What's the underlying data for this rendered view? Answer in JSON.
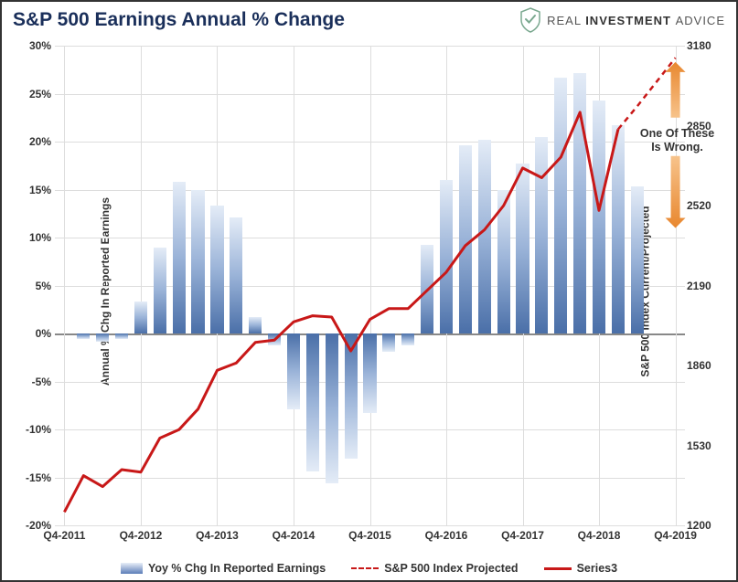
{
  "title": "S&P 500 Earnings Annual % Change",
  "logo": {
    "brand1": "REAL ",
    "brand2": "INVESTMENT ",
    "brand3": "ADVICE"
  },
  "left_axis": {
    "label": "Annual % Chg In Reported Earnings",
    "min": -20,
    "max": 30,
    "step": 5,
    "tick_labels": [
      "-20%",
      "-15%",
      "-10%",
      "-5%",
      "0%",
      "5%",
      "10%",
      "15%",
      "20%",
      "25%",
      "30%"
    ]
  },
  "right_axis": {
    "label": "S&P 500 Index Current/Projected",
    "min": 1200,
    "max": 3180,
    "ticks": [
      1200,
      1530,
      1860,
      2190,
      2520,
      2850,
      3180
    ]
  },
  "x_axis": {
    "categories": [
      "Q4-2011",
      "Q1-2012",
      "Q2-2012",
      "Q3-2012",
      "Q4-2012",
      "Q1-2013",
      "Q2-2013",
      "Q3-2013",
      "Q4-2013",
      "Q1-2014",
      "Q2-2014",
      "Q3-2014",
      "Q4-2014",
      "Q1-2015",
      "Q2-2015",
      "Q3-2015",
      "Q4-2015",
      "Q1-2016",
      "Q2-2016",
      "Q3-2016",
      "Q4-2016",
      "Q1-2017",
      "Q2-2017",
      "Q3-2017",
      "Q4-2017",
      "Q1-2018",
      "Q2-2018",
      "Q3-2018",
      "Q4-2018",
      "Q1-2019",
      "Q2-2019",
      "Q3-2019",
      "Q4-2019"
    ],
    "tick_every": 4,
    "tick_labels": [
      "Q4-2011",
      "Q4-2012",
      "Q4-2013",
      "Q4-2014",
      "Q4-2015",
      "Q4-2016",
      "Q4-2017",
      "Q4-2018",
      "Q4-2019"
    ]
  },
  "bars": {
    "values": [
      null,
      -0.6,
      -0.9,
      -0.6,
      3.3,
      9.0,
      15.8,
      15.0,
      13.3,
      12.1,
      1.7,
      -1.2,
      -7.9,
      -14.4,
      -15.6,
      -13.0,
      -8.3,
      -1.9,
      -1.2,
      9.2,
      16.0,
      19.6,
      20.2,
      15.0,
      17.7,
      20.5,
      26.7,
      27.1,
      24.3,
      21.7,
      15.3,
      null,
      null
    ],
    "bar_width_frac": 0.68,
    "colors": {
      "top": "#e4ecf7",
      "mid": "#9ab3d8",
      "bottom": "#4a6fa8"
    }
  },
  "line_solid": {
    "color": "#c81818",
    "width": 3,
    "values": [
      1255,
      1405,
      1360,
      1430,
      1420,
      1560,
      1595,
      1680,
      1840,
      1870,
      1955,
      1965,
      2040,
      2065,
      2060,
      1920,
      2050,
      2095,
      2095,
      2170,
      2245,
      2355,
      2420,
      2520,
      2675,
      2635,
      2720,
      2905,
      2500,
      2835,
      null,
      null,
      null
    ]
  },
  "line_dashed": {
    "color": "#c81818",
    "width": 2.5,
    "dash": "6,5",
    "values": [
      null,
      null,
      null,
      null,
      null,
      null,
      null,
      null,
      null,
      null,
      null,
      null,
      null,
      null,
      null,
      null,
      null,
      null,
      null,
      null,
      null,
      null,
      null,
      null,
      null,
      null,
      null,
      null,
      null,
      2835,
      2930,
      3030,
      3130
    ]
  },
  "annotation": {
    "text1": "One Of These",
    "text2": "Is Wrong."
  },
  "arrows": {
    "color_start": "#f7c38b",
    "color_end": "#e8872f"
  },
  "legend": {
    "items": [
      {
        "type": "bar",
        "label": "Yoy % Chg In Reported Earnings"
      },
      {
        "type": "dash",
        "label": "S&P 500 Index Projected"
      },
      {
        "type": "line",
        "label": "Series3"
      }
    ]
  },
  "background_color": "#ffffff",
  "grid_color": "#dddddd"
}
